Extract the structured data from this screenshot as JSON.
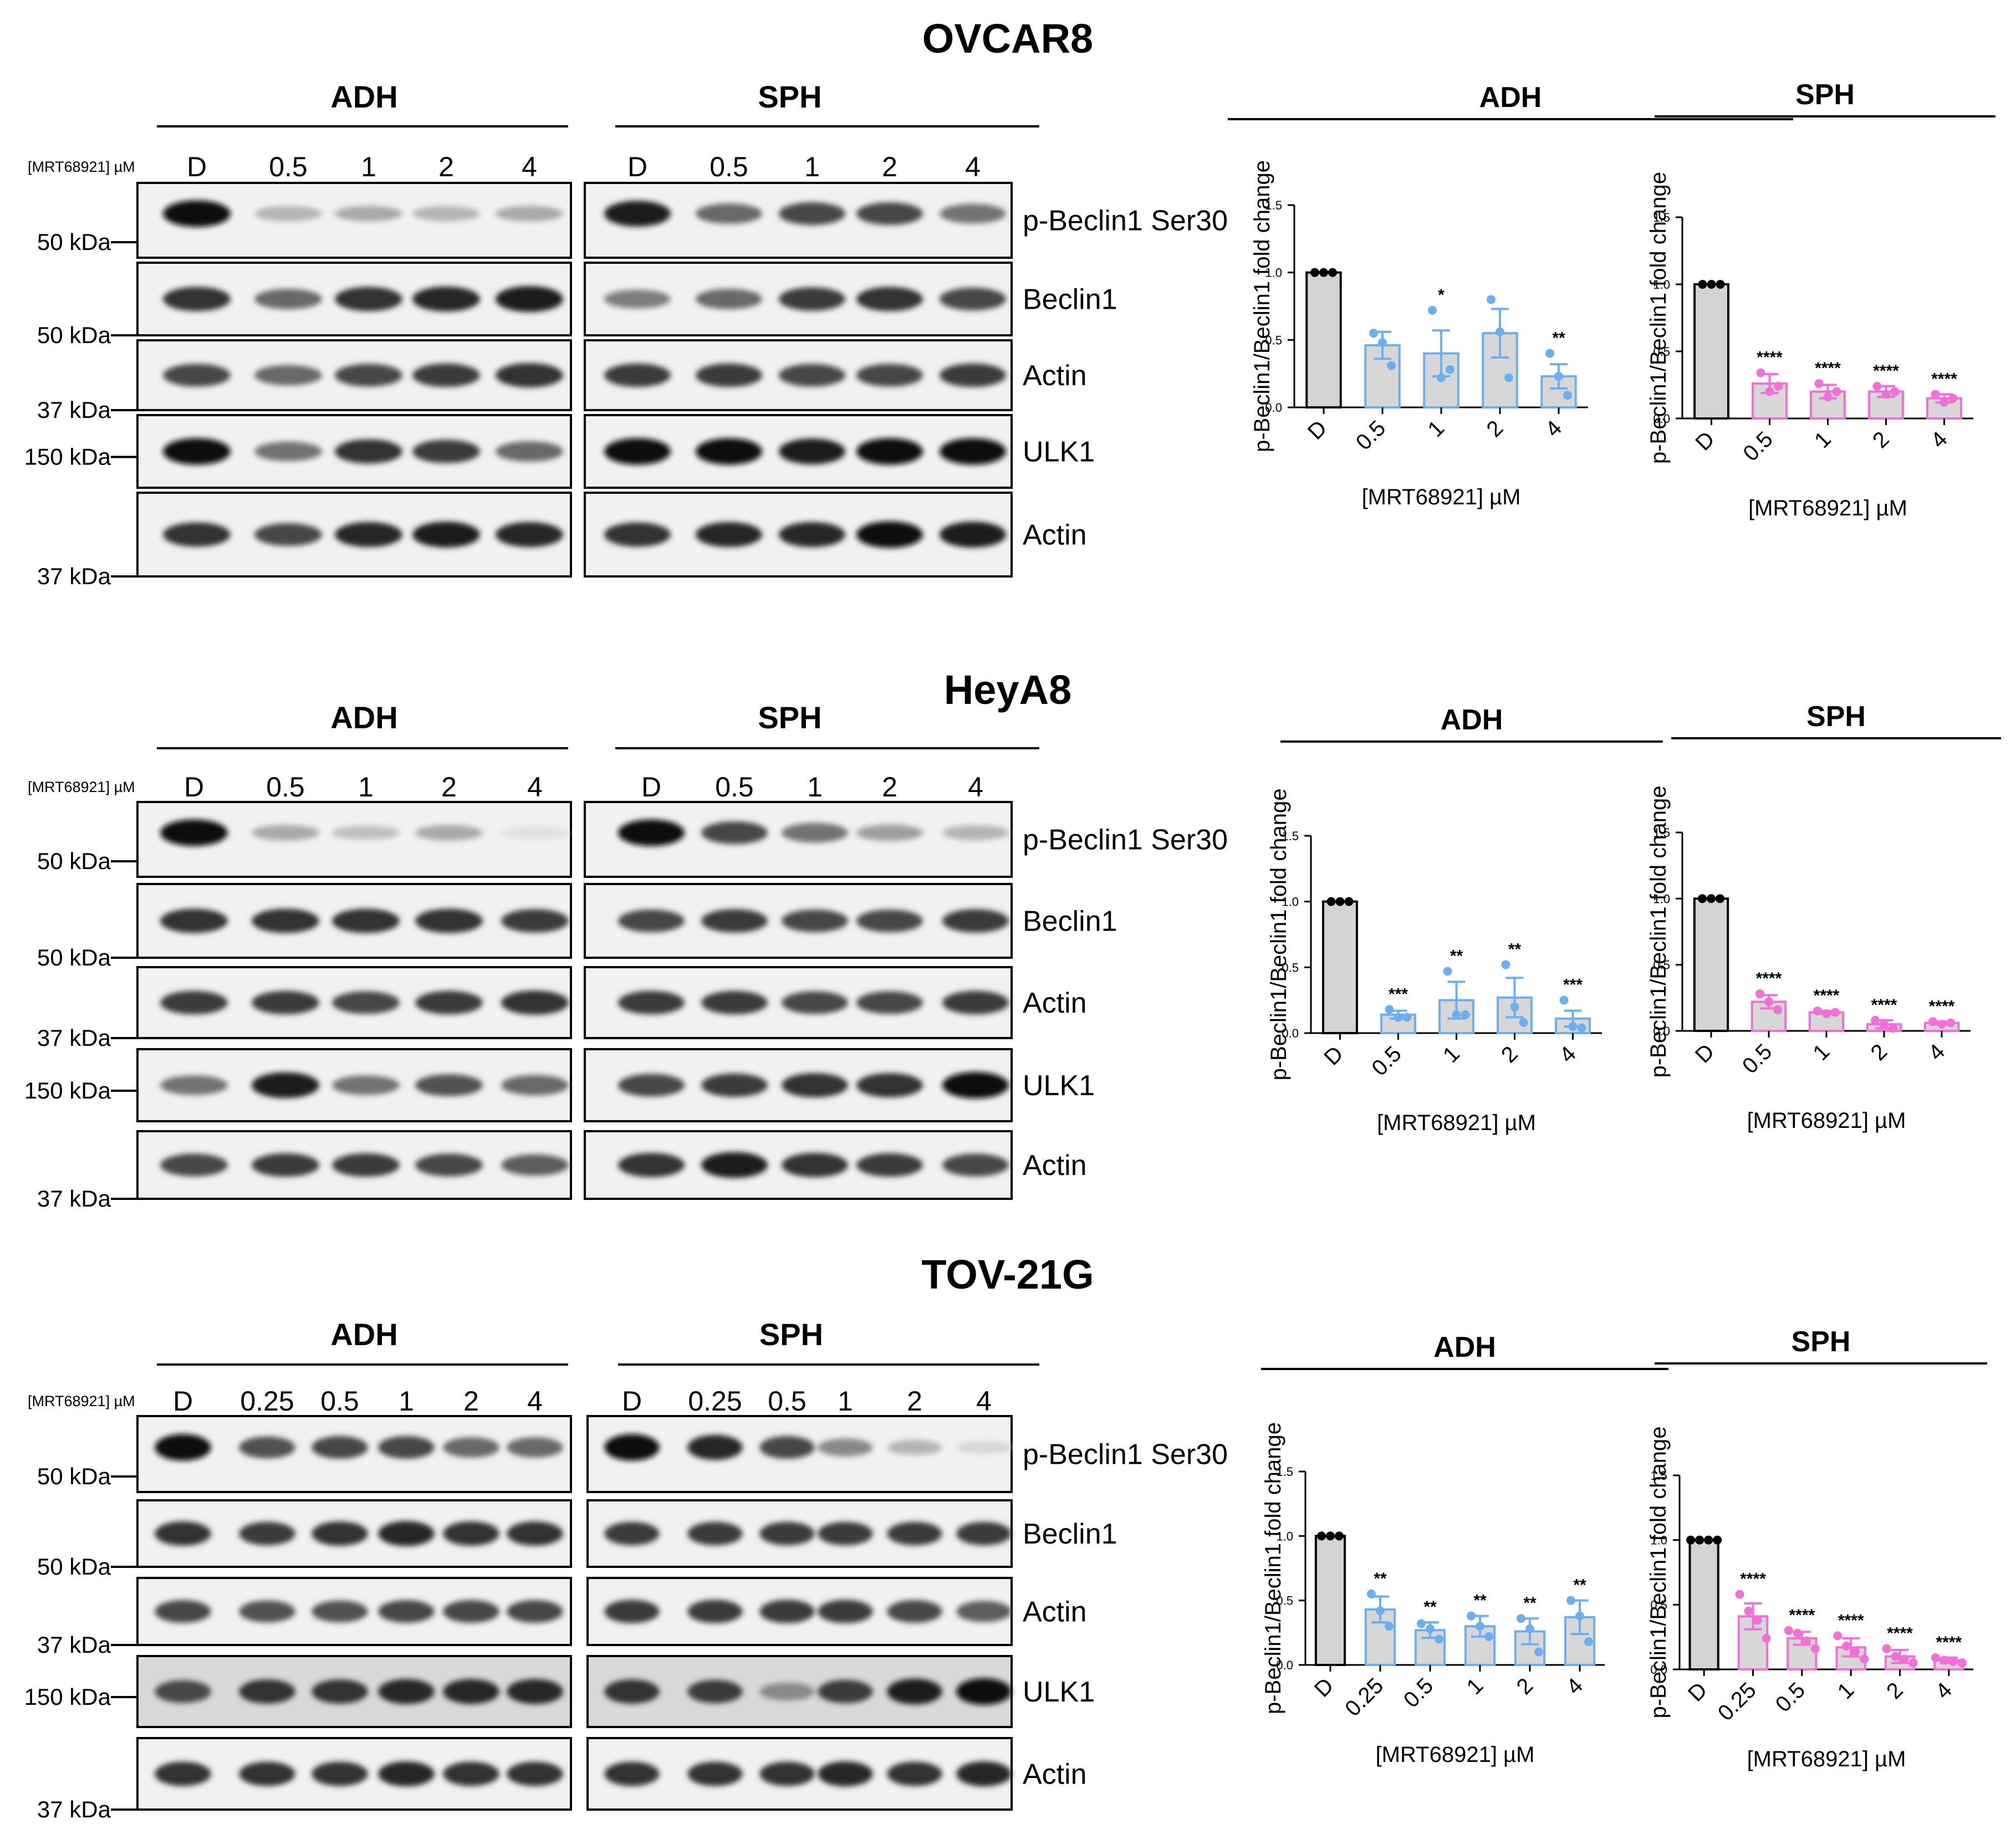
{
  "colors": {
    "adh": "#6ab0f0",
    "sph": "#f26fd8",
    "control_fill": "#d4d4d4",
    "text": "#000000"
  },
  "conc_label": "[MRT68921] µM",
  "panels": [
    {
      "id": "ovcar8",
      "cell_line": "OVCAR8",
      "blot": {
        "adh_label": "ADH",
        "sph_label": "SPH",
        "adh_lanes": [
          "D",
          "0.5",
          "1",
          "2",
          "4"
        ],
        "sph_lanes": [
          "D",
          "0.5",
          "1",
          "2",
          "4"
        ],
        "rows": [
          {
            "label": "p-Beclin1 Ser30",
            "marker": "50 kDa"
          },
          {
            "label": "Beclin1",
            "marker": "50 kDa"
          },
          {
            "label": "Actin",
            "marker": "37 kDa"
          },
          {
            "label": "ULK1",
            "marker": "150 kDa"
          },
          {
            "label": "Actin",
            "marker": "37 kDa"
          }
        ],
        "band_intensity": {
          "adh": [
            [
              1.0,
              0.25,
              0.3,
              0.25,
              0.3
            ],
            [
              0.85,
              0.6,
              0.85,
              0.9,
              0.95
            ],
            [
              0.75,
              0.6,
              0.75,
              0.8,
              0.85
            ],
            [
              1.0,
              0.55,
              0.85,
              0.8,
              0.6
            ],
            [
              0.85,
              0.75,
              0.9,
              0.95,
              0.9
            ]
          ],
          "sph": [
            [
              0.95,
              0.6,
              0.75,
              0.75,
              0.55
            ],
            [
              0.5,
              0.6,
              0.8,
              0.85,
              0.75
            ],
            [
              0.8,
              0.8,
              0.75,
              0.75,
              0.8
            ],
            [
              1.0,
              1.0,
              0.95,
              1.0,
              1.0
            ],
            [
              0.85,
              0.9,
              0.9,
              1.0,
              0.95
            ]
          ]
        }
      }
    },
    {
      "id": "heya8",
      "cell_line": "HeyA8",
      "blot": {
        "adh_label": "ADH",
        "sph_label": "SPH",
        "adh_lanes": [
          "D",
          "0.5",
          "1",
          "2",
          "4"
        ],
        "sph_lanes": [
          "D",
          "0.5",
          "1",
          "2",
          "4"
        ],
        "rows": [
          {
            "label": "p-Beclin1 Ser30",
            "marker": "50 kDa"
          },
          {
            "label": "Beclin1",
            "marker": "50 kDa"
          },
          {
            "label": "Actin",
            "marker": "37 kDa"
          },
          {
            "label": "ULK1",
            "marker": "150 kDa"
          },
          {
            "label": "Actin",
            "marker": "37 kDa"
          }
        ],
        "band_intensity": {
          "adh": [
            [
              1.0,
              0.3,
              0.2,
              0.3,
              0.05
            ],
            [
              0.85,
              0.85,
              0.85,
              0.85,
              0.8
            ],
            [
              0.8,
              0.8,
              0.75,
              0.8,
              0.85
            ],
            [
              0.55,
              0.95,
              0.55,
              0.7,
              0.6
            ],
            [
              0.75,
              0.8,
              0.8,
              0.75,
              0.65
            ]
          ],
          "sph": [
            [
              1.0,
              0.75,
              0.55,
              0.35,
              0.25
            ],
            [
              0.75,
              0.8,
              0.75,
              0.75,
              0.8
            ],
            [
              0.8,
              0.8,
              0.75,
              0.75,
              0.8
            ],
            [
              0.75,
              0.8,
              0.85,
              0.85,
              1.0
            ],
            [
              0.85,
              0.95,
              0.85,
              0.8,
              0.75
            ]
          ]
        }
      }
    },
    {
      "id": "tov21g",
      "cell_line": "TOV-21G",
      "blot": {
        "adh_label": "ADH",
        "sph_label": "SPH",
        "adh_lanes": [
          "D",
          "0.25",
          "0.5",
          "1",
          "2",
          "4"
        ],
        "sph_lanes": [
          "D",
          "0.25",
          "0.5",
          "1",
          "2",
          "4"
        ],
        "rows": [
          {
            "label": "p-Beclin1 Ser30",
            "marker": "50 kDa"
          },
          {
            "label": "Beclin1",
            "marker": "50 kDa"
          },
          {
            "label": "Actin",
            "marker": "37 kDa"
          },
          {
            "label": "ULK1",
            "marker": "150 kDa"
          },
          {
            "label": "Actin",
            "marker": "37 kDa"
          }
        ],
        "band_intensity": {
          "adh": [
            [
              1.0,
              0.7,
              0.75,
              0.75,
              0.6,
              0.6
            ],
            [
              0.85,
              0.8,
              0.85,
              0.9,
              0.85,
              0.85
            ],
            [
              0.75,
              0.7,
              0.7,
              0.75,
              0.75,
              0.75
            ],
            [
              0.75,
              0.85,
              0.85,
              0.9,
              0.9,
              0.9
            ],
            [
              0.85,
              0.85,
              0.85,
              0.9,
              0.85,
              0.85
            ]
          ],
          "sph": [
            [
              1.0,
              0.9,
              0.75,
              0.45,
              0.25,
              0.1
            ],
            [
              0.8,
              0.8,
              0.8,
              0.8,
              0.8,
              0.8
            ],
            [
              0.8,
              0.8,
              0.8,
              0.8,
              0.75,
              0.65
            ],
            [
              0.85,
              0.8,
              0.45,
              0.8,
              0.95,
              1.0
            ],
            [
              0.85,
              0.85,
              0.85,
              0.9,
              0.85,
              0.9
            ]
          ]
        }
      }
    }
  ],
  "chart_data": [
    {
      "id": "ovcar8_adh",
      "type": "bar",
      "title": "ADH",
      "xlabel": "[MRT68921] µM",
      "ylabel": "p-Beclin1/Beclin1 fold change",
      "ylim": [
        0,
        1.5
      ],
      "yticks": [
        "0.0",
        "0.5",
        "1.0",
        "1.5"
      ],
      "categories": [
        "D",
        "0.5",
        "1",
        "2",
        "4"
      ],
      "values": [
        1.0,
        0.46,
        0.4,
        0.55,
        0.23
      ],
      "sem": [
        0,
        0.1,
        0.17,
        0.18,
        0.09
      ],
      "points": [
        [
          1.0,
          1.0,
          1.0
        ],
        [
          0.55,
          0.48,
          0.31
        ],
        [
          0.72,
          0.22,
          0.28
        ],
        [
          0.8,
          0.56,
          0.22
        ],
        [
          0.4,
          0.23,
          0.09
        ]
      ],
      "significance": [
        "",
        "",
        "*",
        "",
        "**"
      ],
      "color": "#6ab0f0"
    },
    {
      "id": "ovcar8_sph",
      "type": "bar",
      "title": "SPH",
      "xlabel": "[MRT68921] µM",
      "ylabel": "p-Beclin1/Beclin1 fold change",
      "ylim": [
        0,
        1.5
      ],
      "yticks": [
        "0.0",
        "0.5",
        "1.0",
        "1.5"
      ],
      "categories": [
        "D",
        "0.5",
        "1",
        "2",
        "4"
      ],
      "values": [
        1.0,
        0.26,
        0.2,
        0.2,
        0.15
      ],
      "sem": [
        0,
        0.07,
        0.05,
        0.04,
        0.03
      ],
      "points": [
        [
          1.0,
          1.0,
          1.0
        ],
        [
          0.34,
          0.2,
          0.24
        ],
        [
          0.26,
          0.16,
          0.2
        ],
        [
          0.24,
          0.18,
          0.2
        ],
        [
          0.18,
          0.12,
          0.15
        ]
      ],
      "significance": [
        "",
        "****",
        "****",
        "****",
        "****"
      ],
      "color": "#f26fd8"
    },
    {
      "id": "heya8_adh",
      "type": "bar",
      "title": "ADH",
      "xlabel": "[MRT68921] µM",
      "ylabel": "p-Beclin1/Beclin1 fold change",
      "ylim": [
        0,
        1.5
      ],
      "yticks": [
        "0.0",
        "0.5",
        "1.0",
        "1.5"
      ],
      "categories": [
        "D",
        "0.5",
        "1",
        "2",
        "4"
      ],
      "values": [
        1.0,
        0.14,
        0.25,
        0.27,
        0.11
      ],
      "sem": [
        0,
        0.03,
        0.14,
        0.15,
        0.06
      ],
      "points": [
        [
          1.0,
          1.0,
          1.0
        ],
        [
          0.18,
          0.12,
          0.12
        ],
        [
          0.47,
          0.14,
          0.14
        ],
        [
          0.52,
          0.2,
          0.08
        ],
        [
          0.25,
          0.05,
          0.04
        ]
      ],
      "significance": [
        "",
        "***",
        "**",
        "**",
        "***"
      ],
      "color": "#6ab0f0"
    },
    {
      "id": "heya8_sph",
      "type": "bar",
      "title": "SPH",
      "xlabel": "[MRT68921] µM",
      "ylabel": "p-Beclin1/Beclin1 fold change",
      "ylim": [
        0,
        1.5
      ],
      "yticks": [
        "0.0",
        "0.5",
        "1.0",
        "1.5"
      ],
      "categories": [
        "D",
        "0.5",
        "1",
        "2",
        "4"
      ],
      "values": [
        1.0,
        0.22,
        0.14,
        0.05,
        0.06
      ],
      "sem": [
        0,
        0.05,
        0.01,
        0.03,
        0.01
      ],
      "points": [
        [
          1.0,
          1.0,
          1.0
        ],
        [
          0.28,
          0.22,
          0.16
        ],
        [
          0.15,
          0.13,
          0.14
        ],
        [
          0.08,
          0.05,
          0.02
        ],
        [
          0.07,
          0.05,
          0.06
        ]
      ],
      "significance": [
        "",
        "****",
        "****",
        "****",
        "****"
      ],
      "color": "#f26fd8"
    },
    {
      "id": "tov21g_adh",
      "type": "bar",
      "title": "ADH",
      "xlabel": "[MRT68921] µM",
      "ylabel": "p-Beclin1/Beclin1 fold change",
      "ylim": [
        0,
        1.5
      ],
      "yticks": [
        "0.0",
        "0.5",
        "1.0",
        "1.5"
      ],
      "categories": [
        "D",
        "0.25",
        "0.5",
        "1",
        "2",
        "4"
      ],
      "values": [
        1.0,
        0.43,
        0.27,
        0.3,
        0.26,
        0.37
      ],
      "sem": [
        0,
        0.1,
        0.06,
        0.08,
        0.1,
        0.13
      ],
      "points": [
        [
          1.0,
          1.0,
          1.0
        ],
        [
          0.55,
          0.42,
          0.3
        ],
        [
          0.32,
          0.28,
          0.2
        ],
        [
          0.38,
          0.3,
          0.22
        ],
        [
          0.36,
          0.28,
          0.1
        ],
        [
          0.5,
          0.38,
          0.18
        ]
      ],
      "significance": [
        "",
        "**",
        "**",
        "**",
        "**",
        "**"
      ],
      "color": "#6ab0f0"
    },
    {
      "id": "tov21g_sph",
      "type": "bar",
      "title": "SPH",
      "xlabel": "[MRT68921] µM",
      "ylabel": "p-Beclin1/Beclin1 fold change",
      "ylim": [
        0,
        1.5
      ],
      "yticks": [
        "0.0",
        "0.5",
        "1.0",
        "1.5"
      ],
      "categories": [
        "D",
        "0.25",
        "0.5",
        "1",
        "2",
        "4"
      ],
      "values": [
        1.0,
        0.41,
        0.24,
        0.17,
        0.1,
        0.07
      ],
      "sem": [
        0,
        0.1,
        0.05,
        0.07,
        0.05,
        0.02
      ],
      "points": [
        [
          1.0,
          1.0,
          1.0,
          1.0
        ],
        [
          0.58,
          0.45,
          0.38,
          0.24
        ],
        [
          0.3,
          0.28,
          0.22,
          0.16
        ],
        [
          0.26,
          0.18,
          0.14,
          0.08
        ],
        [
          0.16,
          0.1,
          0.08,
          0.05
        ],
        [
          0.09,
          0.07,
          0.06,
          0.05
        ]
      ],
      "significance": [
        "",
        "****",
        "****",
        "****",
        "****",
        "****"
      ],
      "color": "#f26fd8"
    }
  ]
}
